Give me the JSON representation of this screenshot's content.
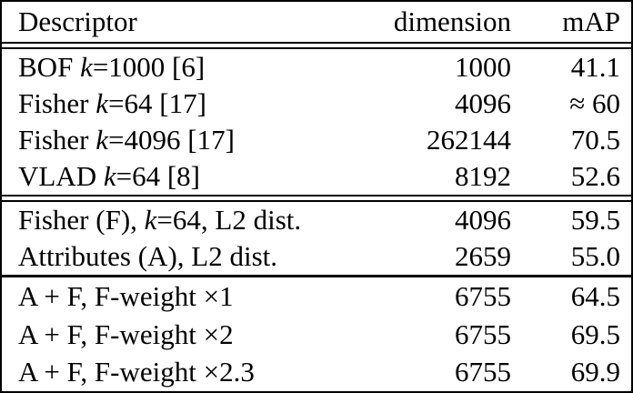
{
  "table": {
    "columns": {
      "descriptor": "Descriptor",
      "dimension": "dimension",
      "map": "mAP"
    },
    "sections": [
      {
        "rows": [
          {
            "pre": "BOF ",
            "k": "k",
            "post": "=1000 [6]",
            "dimension": "1000",
            "map": "41.1"
          },
          {
            "pre": "Fisher ",
            "k": "k",
            "post": "=64 [17]",
            "dimension": "4096",
            "map": "≈ 60"
          },
          {
            "pre": "Fisher ",
            "k": "k",
            "post": "=4096 [17]",
            "dimension": "262144",
            "map": "70.5"
          },
          {
            "pre": "VLAD ",
            "k": "k",
            "post": "=64 [8]",
            "dimension": "8192",
            "map": "52.6"
          }
        ]
      },
      {
        "rows": [
          {
            "pre": "Fisher (F), ",
            "k": "k",
            "post": "=64, L2 dist.",
            "dimension": "4096",
            "map": "59.5"
          },
          {
            "pre": "Attributes (A), L2 dist.",
            "k": "",
            "post": "",
            "dimension": "2659",
            "map": "55.0"
          }
        ]
      },
      {
        "rows": [
          {
            "pre": "A + F, F-weight ×1",
            "k": "",
            "post": "",
            "dimension": "6755",
            "map": "64.5"
          },
          {
            "pre": "A + F, F-weight ×2",
            "k": "",
            "post": "",
            "dimension": "6755",
            "map": "69.5"
          },
          {
            "pre": "A + F, F-weight ×2.3",
            "k": "",
            "post": "",
            "dimension": "6755",
            "map": "69.9"
          }
        ]
      }
    ]
  }
}
